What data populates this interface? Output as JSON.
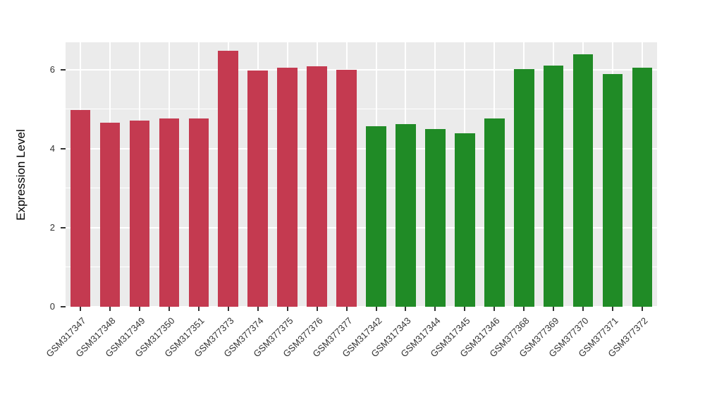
{
  "figure": {
    "background": "#FFFFFF",
    "panel_background": "#EBEBEB",
    "gridline_color": "#FFFFFF",
    "axis_text_color": "#333333"
  },
  "chart_data": {
    "type": "bar",
    "title": "",
    "xlabel": "",
    "ylabel": "Expression Level",
    "ylim": [
      0,
      6.7
    ],
    "yticks": [
      0,
      2,
      4,
      6
    ],
    "yticks_minor": [
      1,
      3,
      5
    ],
    "grid": true,
    "legend": "none",
    "categories": [
      "GSM317347",
      "GSM317348",
      "GSM317349",
      "GSM317350",
      "GSM317351",
      "GSM377373",
      "GSM377374",
      "GSM377375",
      "GSM377376",
      "GSM377377",
      "GSM317342",
      "GSM317343",
      "GSM317344",
      "GSM317345",
      "GSM317346",
      "GSM377368",
      "GSM377369",
      "GSM377370",
      "GSM377371",
      "GSM377372"
    ],
    "values": [
      4.98,
      4.66,
      4.72,
      4.77,
      4.77,
      6.48,
      5.99,
      6.05,
      6.09,
      6.01,
      4.58,
      4.62,
      4.5,
      4.39,
      4.77,
      6.02,
      6.11,
      6.39,
      5.9,
      6.05
    ],
    "bar_colors": [
      "#C43A50",
      "#C43A50",
      "#C43A50",
      "#C43A50",
      "#C43A50",
      "#C43A50",
      "#C43A50",
      "#C43A50",
      "#C43A50",
      "#C43A50",
      "#208B26",
      "#208B26",
      "#208B26",
      "#208B26",
      "#208B26",
      "#208B26",
      "#208B26",
      "#208B26",
      "#208B26",
      "#208B26"
    ],
    "group_colors": {
      "group1": "#C43A50",
      "group2": "#208B26"
    }
  }
}
